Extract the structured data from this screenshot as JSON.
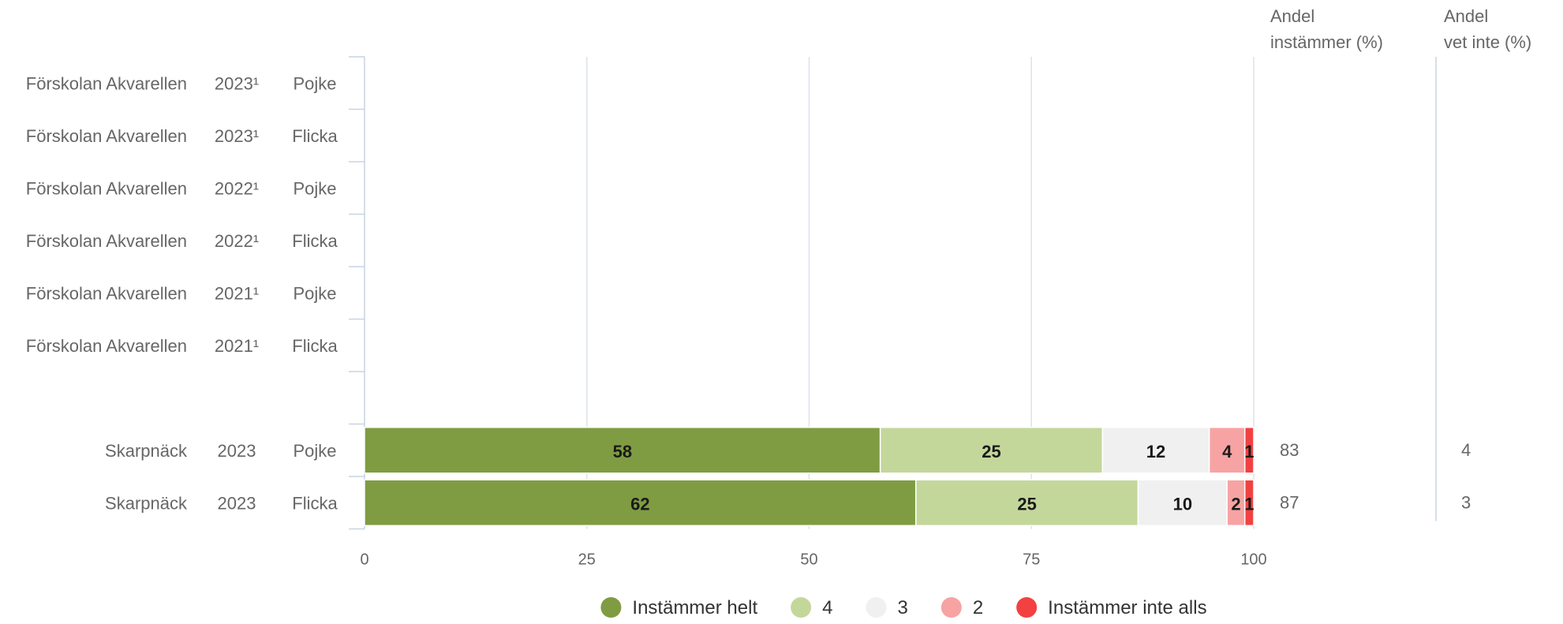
{
  "chart_data": {
    "type": "bar",
    "orientation": "horizontal",
    "stacked": true,
    "xlim": [
      0,
      100
    ],
    "x_ticks": [
      "0",
      "25",
      "50",
      "75",
      "100"
    ],
    "grid": true,
    "legend_position": "bottom",
    "column_headers": {
      "agree": [
        "Andel",
        "instämmer (%)"
      ],
      "dont_know": [
        "Andel",
        "vet inte (%)"
      ]
    },
    "rows": [
      {
        "unit": "Förskolan Akvarellen",
        "year": "2023¹",
        "gender": "Pojke",
        "values": null,
        "agree": "",
        "dont_know": ""
      },
      {
        "unit": "Förskolan Akvarellen",
        "year": "2023¹",
        "gender": "Flicka",
        "values": null,
        "agree": "",
        "dont_know": ""
      },
      {
        "unit": "Förskolan Akvarellen",
        "year": "2022¹",
        "gender": "Pojke",
        "values": null,
        "agree": "",
        "dont_know": ""
      },
      {
        "unit": "Förskolan Akvarellen",
        "year": "2022¹",
        "gender": "Flicka",
        "values": null,
        "agree": "",
        "dont_know": ""
      },
      {
        "unit": "Förskolan Akvarellen",
        "year": "2021¹",
        "gender": "Pojke",
        "values": null,
        "agree": "",
        "dont_know": ""
      },
      {
        "unit": "Förskolan Akvarellen",
        "year": "2021¹",
        "gender": "Flicka",
        "values": null,
        "agree": "",
        "dont_know": ""
      },
      {
        "unit": "",
        "year": "",
        "gender": "",
        "values": null,
        "agree": "",
        "dont_know": ""
      },
      {
        "unit": "Skarpnäck",
        "year": "2023",
        "gender": "Pojke",
        "values": [
          58,
          25,
          12,
          4,
          1
        ],
        "agree": "83",
        "dont_know": "4"
      },
      {
        "unit": "Skarpnäck",
        "year": "2023",
        "gender": "Flicka",
        "values": [
          62,
          25,
          10,
          2,
          1
        ],
        "agree": "87",
        "dont_know": "3"
      }
    ],
    "series": [
      {
        "name": "Instämmer helt",
        "color": "#7f9c42"
      },
      {
        "name": "4",
        "color": "#c4d79b"
      },
      {
        "name": "3",
        "color": "#f0f0f0"
      },
      {
        "name": "2",
        "color": "#f7a3a3"
      },
      {
        "name": "Instämmer inte alls",
        "color": "#f34141"
      }
    ]
  }
}
